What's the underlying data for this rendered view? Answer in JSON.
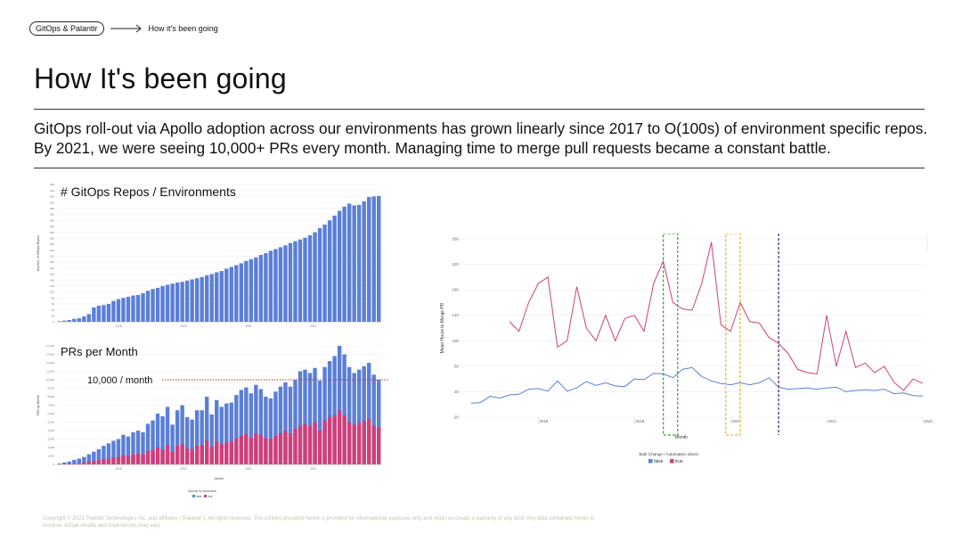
{
  "header": {
    "pill": "GitOps & Palantir",
    "breadcrumb": "How it's been going"
  },
  "title": "How It's been going",
  "description": "GitOps roll-out via Apollo adoption across our environments has grown linearly since 2017 to O(100s) of environment specific repos. By 2021, we were seeing 10,000+ PRs every month. Managing time to merge pull requests became a constant battle.",
  "footer": "Copyright © 2022 Palantir Technologies Inc. and affiliates (\"Palantir\"). All rights reserved. The content provided herein is provided for informational purposes only and shall not create a warranty of any kind. Any data contained herein is notional. Actual results and experiences may vary.",
  "colors": {
    "blue": "#5b7fd8",
    "red": "#cf3f7a",
    "green": "#3da33d",
    "yellow": "#e6b631",
    "purple": "#4b2d8a"
  },
  "chart_data": [
    {
      "type": "bar",
      "title": "# GitOps Repos / Environments",
      "ylabel": "Number of GitOps Repos",
      "ylim": [
        0,
        460
      ],
      "yticks": [
        0,
        20,
        40,
        60,
        80,
        100,
        120,
        140,
        160,
        180,
        200,
        220,
        240,
        260,
        280,
        300,
        320,
        340,
        360,
        380,
        400,
        420,
        440,
        460
      ],
      "xticks": [
        "2018",
        "2019",
        "2020",
        "2021"
      ],
      "values": [
        2,
        4,
        6,
        10,
        12,
        18,
        26,
        48,
        54,
        56,
        60,
        70,
        76,
        80,
        84,
        88,
        90,
        96,
        104,
        110,
        114,
        120,
        124,
        128,
        132,
        134,
        138,
        142,
        146,
        150,
        156,
        160,
        166,
        170,
        178,
        184,
        190,
        196,
        204,
        210,
        216,
        224,
        230,
        238,
        244,
        250,
        256,
        264,
        270,
        276,
        282,
        290,
        300,
        314,
        326,
        340,
        356,
        372,
        386,
        396,
        390,
        392,
        404,
        418,
        420,
        422
      ]
    },
    {
      "type": "bar",
      "title": "PRs per Month",
      "xlabel": "Month",
      "ylabel": "PRs by Month",
      "ylim": [
        0,
        14000
      ],
      "yticks": [
        0,
        1000,
        2000,
        3000,
        4000,
        5000,
        6000,
        7000,
        8000,
        9000,
        10000,
        11000,
        12000,
        13000,
        14000
      ],
      "xticks": [
        "2018",
        "2019",
        "2020",
        "2021"
      ],
      "annotation": "10,000 / month",
      "reference_line": 10000,
      "legend_title": "Opened by Automation",
      "series": [
        {
          "name": "false",
          "values": [
            120,
            240,
            340,
            540,
            700,
            880,
            1200,
            1500,
            1800,
            2200,
            2500,
            2800,
            3000,
            3500,
            3300,
            3800,
            4000,
            3800,
            4800,
            5200,
            6000,
            5700,
            6800,
            4700,
            6400,
            7000,
            5600,
            5300,
            6400,
            6400,
            8000,
            5900,
            7600,
            6800,
            7200,
            7300,
            8200,
            8800,
            9100,
            8400,
            9400,
            8900,
            8000,
            7800,
            8600,
            9200,
            9700,
            9200,
            10000,
            11000,
            11200,
            10800,
            11400,
            9900,
            11500,
            12200,
            12800,
            14000,
            13000,
            11500,
            10800,
            11200,
            11600,
            12000,
            10600,
            10000
          ]
        },
        {
          "name": "true",
          "values": [
            40,
            60,
            80,
            120,
            160,
            240,
            360,
            400,
            520,
            640,
            700,
            820,
            900,
            1100,
            1000,
            1200,
            1300,
            1200,
            1600,
            1700,
            2000,
            1800,
            2300,
            1500,
            2200,
            2400,
            1900,
            1800,
            2200,
            2300,
            2800,
            2100,
            2700,
            2400,
            2600,
            2700,
            3100,
            3400,
            3600,
            3200,
            3700,
            3500,
            3100,
            3000,
            3400,
            3700,
            4000,
            3700,
            4200,
            4600,
            4800,
            4500,
            5000,
            4000,
            5200,
            5600,
            5800,
            6400,
            5800,
            5000,
            4700,
            4900,
            5200,
            5400,
            4600,
            4400
          ]
        }
      ]
    },
    {
      "type": "line",
      "xlabel": "Month",
      "ylabel": "Mean Hours to Merge PR",
      "ylim": [
        -20,
        260
      ],
      "yticks": [
        -20,
        20,
        60,
        100,
        140,
        180,
        220,
        260
      ],
      "xticks": [
        "2018",
        "2019",
        "2020",
        "2021",
        "2022"
      ],
      "legend_title": "Bulk Change / Automation driven",
      "series": [
        {
          "name": "false",
          "x": [
            2017.3,
            2017.4,
            2017.5,
            2017.6,
            2017.7,
            2017.8,
            2017.9,
            2018.0,
            2018.1,
            2018.2,
            2018.3,
            2018.4,
            2018.5,
            2018.6,
            2018.7,
            2018.8,
            2018.9,
            2019.0,
            2019.1,
            2019.2,
            2019.3,
            2019.4,
            2019.5,
            2019.6,
            2019.7,
            2019.8,
            2019.9,
            2020.0,
            2020.1,
            2020.2,
            2020.3,
            2020.4,
            2020.5,
            2020.6,
            2020.7,
            2020.8,
            2020.9,
            2021.0,
            2021.1,
            2021.2,
            2021.3,
            2021.4,
            2021.5,
            2021.6,
            2021.7,
            2021.8,
            2021.9,
            2022.0
          ],
          "values": [
            2,
            3,
            13,
            10,
            15,
            16,
            24,
            25,
            21,
            37,
            21,
            26,
            36,
            30,
            34,
            29,
            28,
            40,
            39,
            49,
            48,
            42,
            55,
            58,
            44,
            37,
            33,
            31,
            34,
            31,
            34,
            42,
            27,
            24,
            25,
            26,
            24,
            26,
            27,
            20,
            22,
            23,
            22,
            24,
            17,
            18,
            14,
            13
          ]
        },
        {
          "name": "true",
          "x": [
            2017.7,
            2017.8,
            2017.9,
            2018.0,
            2018.1,
            2018.2,
            2018.3,
            2018.4,
            2018.5,
            2018.6,
            2018.7,
            2018.8,
            2018.9,
            2019.0,
            2019.1,
            2019.2,
            2019.3,
            2019.4,
            2019.5,
            2019.6,
            2019.7,
            2019.8,
            2019.9,
            2020.0,
            2020.1,
            2020.2,
            2020.3,
            2020.4,
            2020.5,
            2020.6,
            2020.7,
            2020.8,
            2020.9,
            2021.0,
            2021.1,
            2021.2,
            2021.3,
            2021.4,
            2021.5,
            2021.6,
            2021.7,
            2021.8,
            2021.9,
            2022.0
          ],
          "values": [
            130,
            115,
            160,
            190,
            200,
            90,
            100,
            185,
            120,
            100,
            140,
            100,
            135,
            140,
            115,
            190,
            225,
            160,
            150,
            148,
            190,
            255,
            125,
            115,
            160,
            130,
            128,
            105,
            96,
            80,
            55,
            50,
            48,
            140,
            60,
            115,
            58,
            65,
            50,
            60,
            35,
            22,
            40,
            33
          ]
        }
      ],
      "markers": [
        {
          "color": "green",
          "x": [
            2019.3,
            2019.45
          ],
          "style": "dashed-box"
        },
        {
          "color": "yellow",
          "x": [
            2019.95,
            2020.1
          ],
          "style": "dashed-box"
        },
        {
          "color": "purple",
          "x": 2020.5,
          "style": "dashed-line"
        }
      ]
    }
  ]
}
